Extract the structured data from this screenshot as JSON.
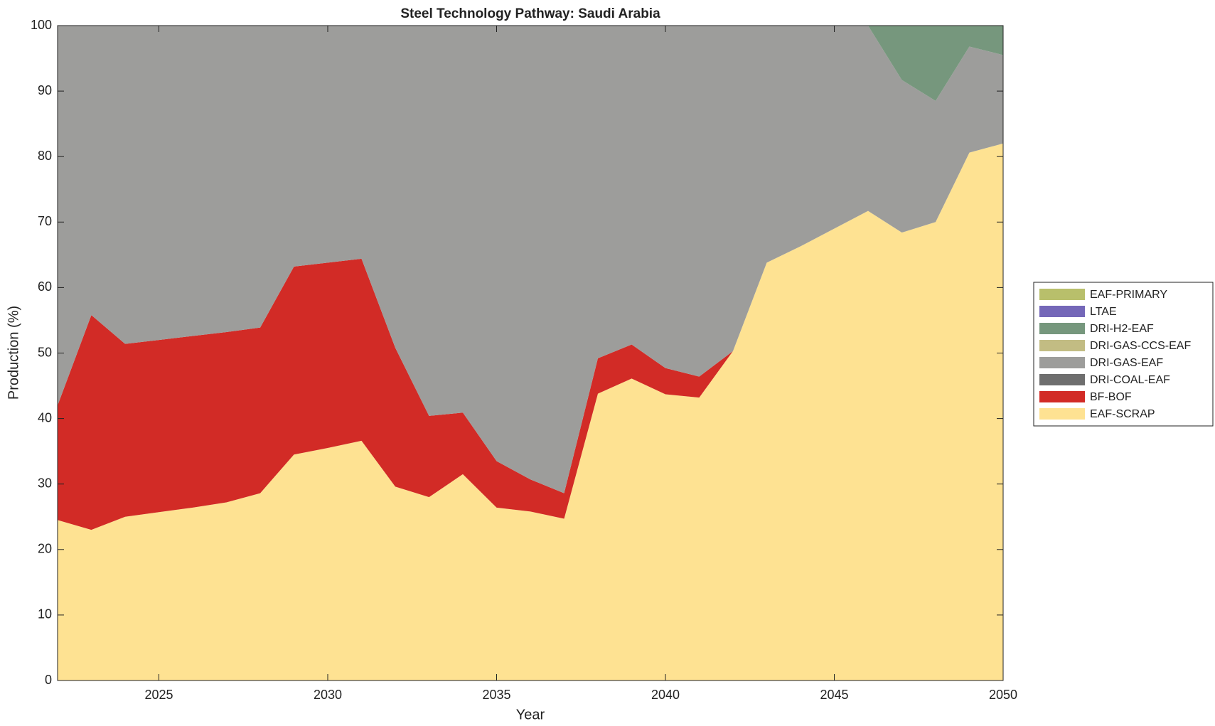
{
  "chart_data": {
    "type": "stacked-area",
    "title": "Steel Technology Pathway: Saudi Arabia",
    "x_label": "Year",
    "y_label": "Production (%)",
    "x": [
      2022,
      2023,
      2024,
      2025,
      2026,
      2027,
      2028,
      2029,
      2030,
      2031,
      2032,
      2033,
      2034,
      2035,
      2036,
      2037,
      2038,
      2039,
      2040,
      2041,
      2042,
      2043,
      2044,
      2045,
      2046,
      2047,
      2048,
      2049,
      2050
    ],
    "xlim": [
      2022,
      2050
    ],
    "xticks": [
      2025,
      2030,
      2035,
      2040,
      2045,
      2050
    ],
    "ylim": [
      0,
      100
    ],
    "yticks": [
      0,
      10,
      20,
      30,
      40,
      50,
      60,
      70,
      80,
      90,
      100
    ],
    "grid": false,
    "legend_position": "right",
    "series": [
      {
        "name": "EAF-SCRAP",
        "color": "#fee292",
        "values": [
          24.5,
          23,
          25,
          25.7,
          26.4,
          27.2,
          28.6,
          34.5,
          35.5,
          36.6,
          29.6,
          28,
          31.5,
          26.4,
          25.8,
          24.7,
          43.8,
          46.1,
          43.7,
          43.2,
          50.3,
          63.8,
          66.3,
          69,
          71.7,
          68.4,
          70,
          80.6,
          82
        ]
      },
      {
        "name": "BF-BOF",
        "color": "#d22b26",
        "values": [
          17.5,
          32.8,
          26.4,
          26.3,
          26.2,
          26,
          25.3,
          28.7,
          28.3,
          27.8,
          21.2,
          12.4,
          9.4,
          7.1,
          4.9,
          3.9,
          5.4,
          5.2,
          4,
          3.2,
          0,
          0,
          0,
          0,
          0,
          0,
          0,
          0,
          0
        ]
      },
      {
        "name": "DRI-COAL-EAF",
        "color": "#6e6e6e",
        "values": [
          0,
          0,
          0,
          0,
          0,
          0,
          0,
          0,
          0,
          0,
          0,
          0,
          0,
          0,
          0,
          0,
          0,
          0,
          0,
          0,
          0,
          0,
          0,
          0,
          0,
          0,
          0,
          0,
          0
        ]
      },
      {
        "name": "DRI-GAS-EAF",
        "color": "#9d9d9b",
        "values": [
          58,
          44.2,
          48.6,
          48,
          47.4,
          46.8,
          46.1,
          36.8,
          36.2,
          35.6,
          49.2,
          59.6,
          59.1,
          66.5,
          69.3,
          71.4,
          50.8,
          48.7,
          52.3,
          53.6,
          49.7,
          36.2,
          33.7,
          31,
          28.3,
          23.3,
          18.5,
          16.2,
          13.5
        ]
      },
      {
        "name": "DRI-GAS-CCS-EAF",
        "color": "#c2bc83",
        "values": [
          0,
          0,
          0,
          0,
          0,
          0,
          0,
          0,
          0,
          0,
          0,
          0,
          0,
          0,
          0,
          0,
          0,
          0,
          0,
          0,
          0,
          0,
          0,
          0,
          0,
          0,
          0,
          0,
          0
        ]
      },
      {
        "name": "DRI-H2-EAF",
        "color": "#76977d",
        "values": [
          0,
          0,
          0,
          0,
          0,
          0,
          0,
          0,
          0,
          0,
          0,
          0,
          0,
          0,
          0,
          0,
          0,
          0,
          0,
          0,
          0,
          0,
          0,
          0,
          0,
          8.3,
          11.5,
          3.2,
          4.5
        ]
      },
      {
        "name": "LTAE",
        "color": "#7467b8",
        "values": [
          0,
          0,
          0,
          0,
          0,
          0,
          0,
          0,
          0,
          0,
          0,
          0,
          0,
          0,
          0,
          0,
          0,
          0,
          0,
          0,
          0,
          0,
          0,
          0,
          0,
          0,
          0,
          0,
          0
        ]
      },
      {
        "name": "EAF-PRIMARY",
        "color": "#b8bf6b",
        "values": [
          0,
          0,
          0,
          0,
          0,
          0,
          0,
          0,
          0,
          0,
          0,
          0,
          0,
          0,
          0,
          0,
          0,
          0,
          0,
          0,
          0,
          0,
          0,
          0,
          0,
          0,
          0,
          0,
          0
        ]
      }
    ]
  }
}
